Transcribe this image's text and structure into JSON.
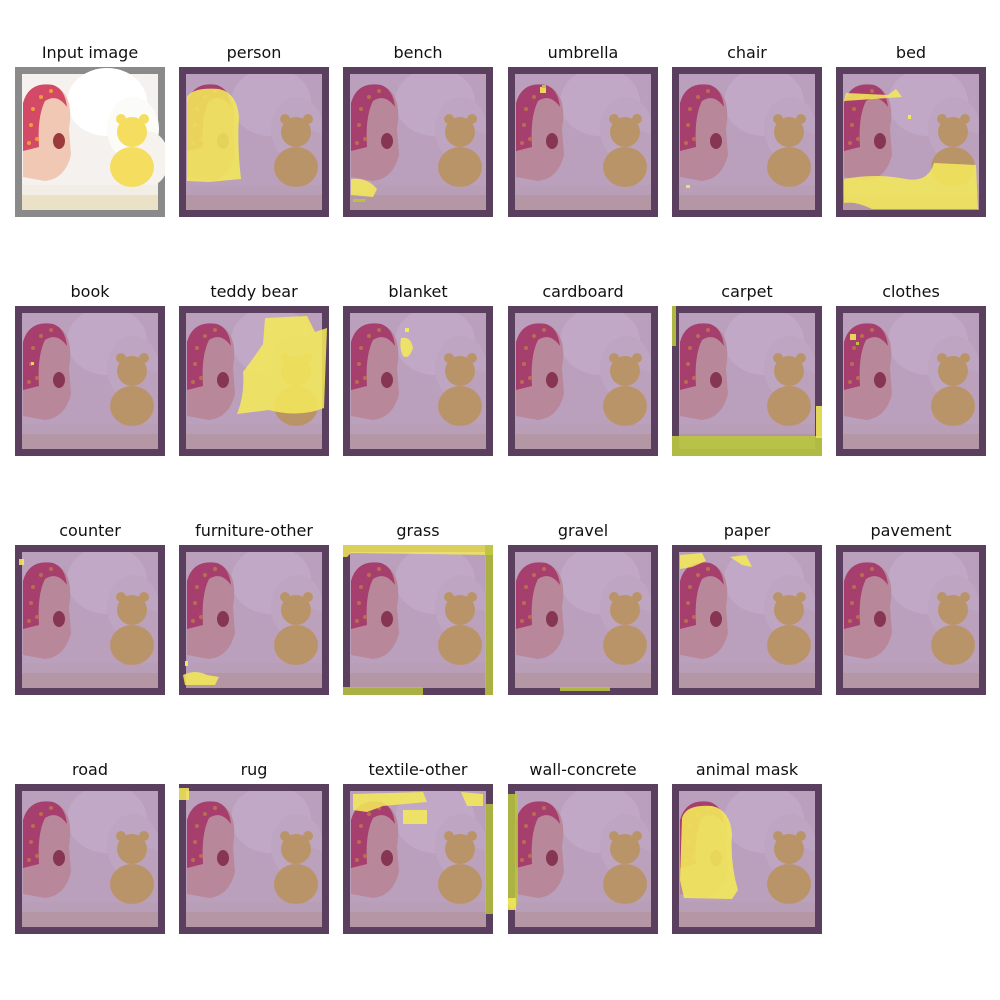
{
  "panels": [
    {
      "title": "Input image",
      "kind": "input",
      "mask": "none"
    },
    {
      "title": "person",
      "kind": "overlay",
      "mask": "person"
    },
    {
      "title": "bench",
      "kind": "overlay",
      "mask": "bench"
    },
    {
      "title": "umbrella",
      "kind": "overlay",
      "mask": "umbrella"
    },
    {
      "title": "chair",
      "kind": "overlay",
      "mask": "chair"
    },
    {
      "title": "bed",
      "kind": "overlay",
      "mask": "bed"
    },
    {
      "title": "book",
      "kind": "overlay",
      "mask": "book"
    },
    {
      "title": "teddy bear",
      "kind": "overlay",
      "mask": "teddy"
    },
    {
      "title": "blanket",
      "kind": "overlay",
      "mask": "blanket"
    },
    {
      "title": "cardboard",
      "kind": "overlay",
      "mask": "none"
    },
    {
      "title": "carpet",
      "kind": "overlay",
      "mask": "carpet"
    },
    {
      "title": "clothes",
      "kind": "overlay",
      "mask": "clothes"
    },
    {
      "title": "counter",
      "kind": "overlay",
      "mask": "counter"
    },
    {
      "title": "furniture-other",
      "kind": "overlay",
      "mask": "furniture"
    },
    {
      "title": "grass",
      "kind": "overlay",
      "mask": "grass"
    },
    {
      "title": "gravel",
      "kind": "overlay",
      "mask": "gravel"
    },
    {
      "title": "paper",
      "kind": "overlay",
      "mask": "paper"
    },
    {
      "title": "pavement",
      "kind": "overlay",
      "mask": "none"
    },
    {
      "title": "road",
      "kind": "overlay",
      "mask": "none"
    },
    {
      "title": "rug",
      "kind": "overlay",
      "mask": "rug"
    },
    {
      "title": "textile-other",
      "kind": "overlay",
      "mask": "textile"
    },
    {
      "title": "wall-concrete",
      "kind": "overlay",
      "mask": "wall"
    },
    {
      "title": "animal mask",
      "kind": "overlay",
      "mask": "animal"
    }
  ],
  "colors": {
    "frame": "#5a3f5e",
    "overlay_tint": "#6a2f78",
    "mask_yellow": "#f2e85a",
    "mask_green": "#b8c440",
    "input_frame": "#8a8a8a"
  }
}
